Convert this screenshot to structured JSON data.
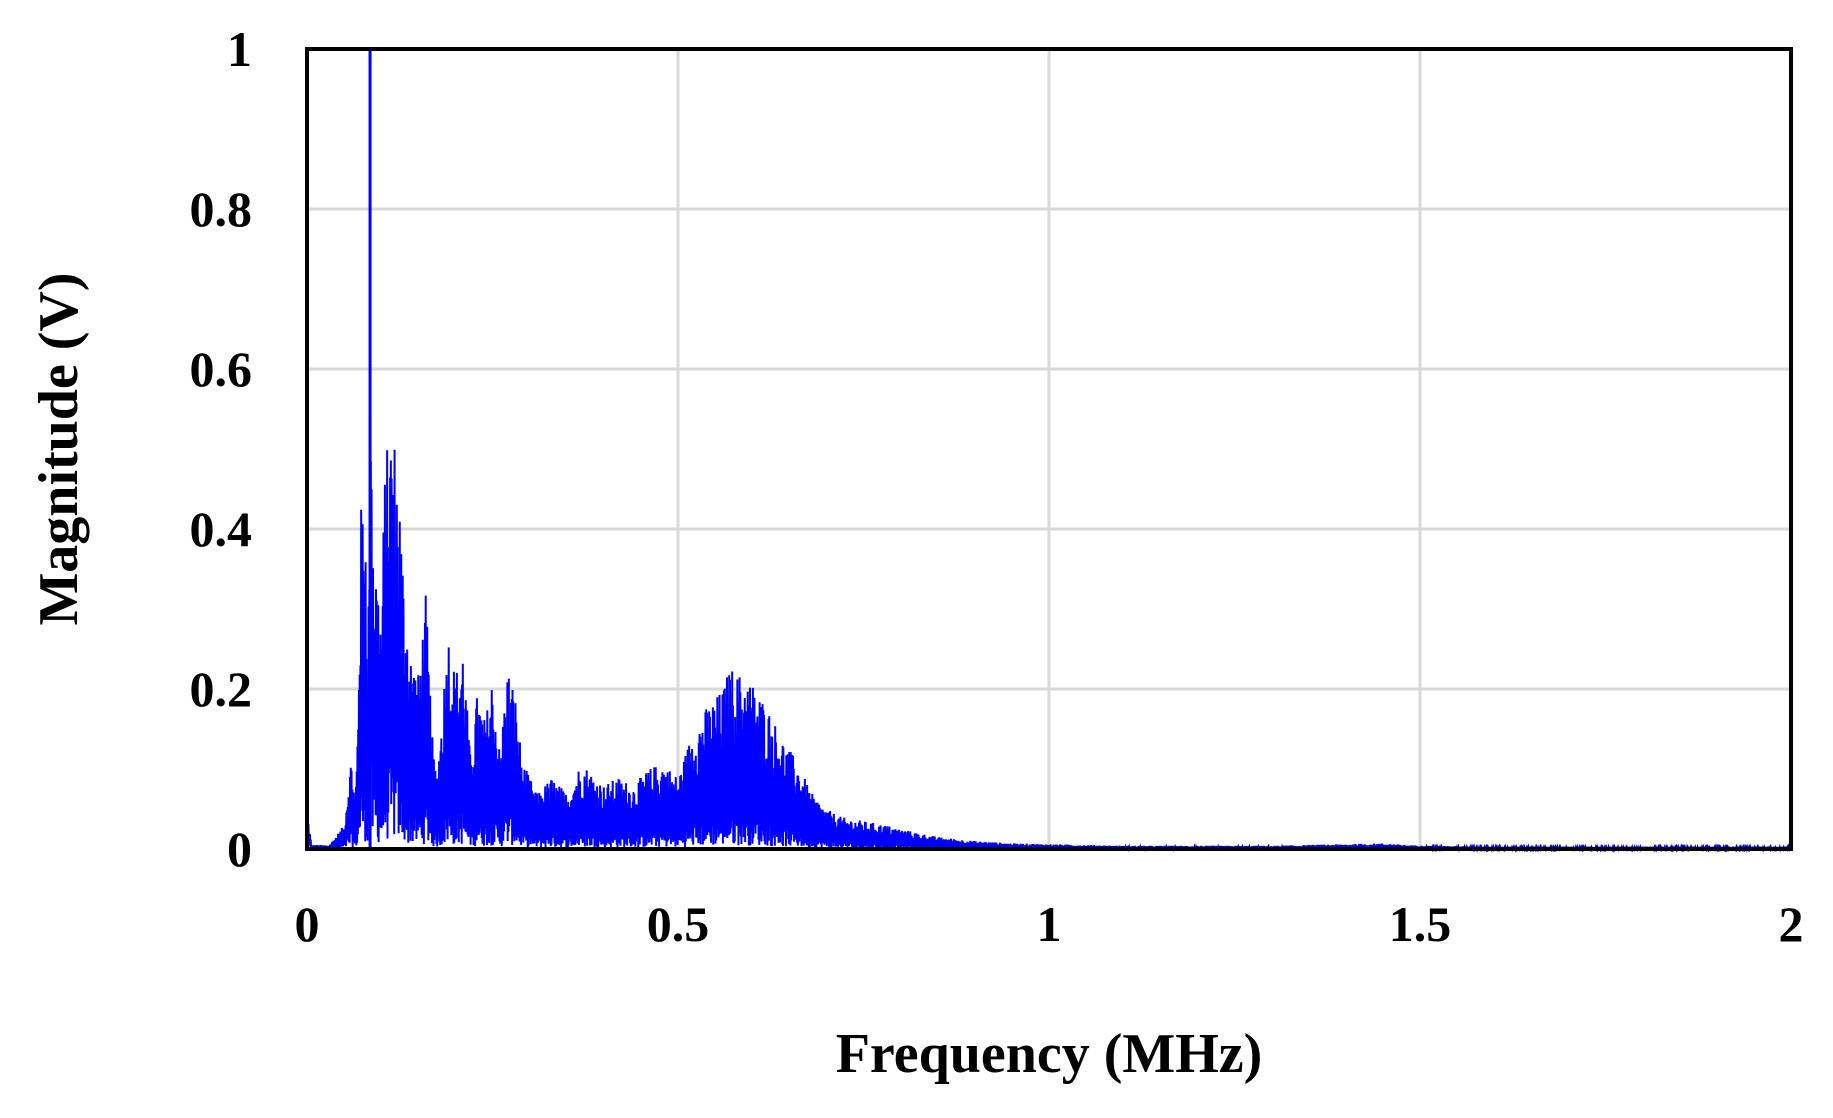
{
  "chart_data": {
    "type": "line",
    "title": "",
    "xlabel": "Frequency (MHz)",
    "ylabel": "Magnitude (V)",
    "xlim": [
      0,
      2
    ],
    "ylim": [
      0,
      1
    ],
    "x_ticks": [
      "0",
      "0.5",
      "1",
      "1.5",
      "2"
    ],
    "y_ticks": [
      "0",
      "0.2",
      "0.4",
      "0.6",
      "0.8",
      "1"
    ],
    "grid": true,
    "legend": "none",
    "series_color": "#0000ff",
    "envelope": {
      "x": [
        0,
        0.003,
        0.006,
        0.03,
        0.05,
        0.055,
        0.06,
        0.065,
        0.068,
        0.07,
        0.073,
        0.078,
        0.08,
        0.082,
        0.084,
        0.085,
        0.088,
        0.092,
        0.1,
        0.105,
        0.11,
        0.115,
        0.12,
        0.125,
        0.13,
        0.14,
        0.15,
        0.16,
        0.17,
        0.175,
        0.18,
        0.19,
        0.2,
        0.21,
        0.22,
        0.23,
        0.24,
        0.25,
        0.26,
        0.27,
        0.28,
        0.29,
        0.3,
        0.31,
        0.33,
        0.35,
        0.37,
        0.39,
        0.4,
        0.42,
        0.44,
        0.46,
        0.48,
        0.5,
        0.52,
        0.54,
        0.56,
        0.57,
        0.58,
        0.59,
        0.6,
        0.62,
        0.64,
        0.66,
        0.68,
        0.7,
        0.72,
        0.75,
        0.78,
        0.8,
        0.85,
        0.9,
        0.95,
        1.0,
        1.1,
        1.2,
        1.3,
        1.4,
        1.45,
        1.5,
        1.6,
        1.7,
        1.8,
        1.9,
        2.0
      ],
      "y": [
        0.05,
        0.03,
        0.005,
        0.005,
        0.03,
        0.08,
        0.12,
        0.06,
        0.15,
        0.28,
        0.43,
        0.47,
        0.4,
        0.2,
        0.5,
        1.0,
        0.45,
        0.38,
        0.3,
        0.48,
        0.52,
        0.55,
        0.5,
        0.45,
        0.35,
        0.25,
        0.22,
        0.32,
        0.12,
        0.1,
        0.15,
        0.28,
        0.22,
        0.26,
        0.12,
        0.2,
        0.16,
        0.22,
        0.12,
        0.23,
        0.2,
        0.11,
        0.09,
        0.07,
        0.09,
        0.07,
        0.11,
        0.09,
        0.08,
        0.09,
        0.08,
        0.1,
        0.11,
        0.09,
        0.15,
        0.18,
        0.2,
        0.23,
        0.22,
        0.22,
        0.21,
        0.18,
        0.14,
        0.11,
        0.07,
        0.05,
        0.04,
        0.035,
        0.03,
        0.025,
        0.015,
        0.01,
        0.007,
        0.006,
        0.004,
        0.004,
        0.004,
        0.006,
        0.007,
        0.004,
        0.003,
        0.003,
        0.003,
        0.003,
        0.003
      ]
    }
  }
}
